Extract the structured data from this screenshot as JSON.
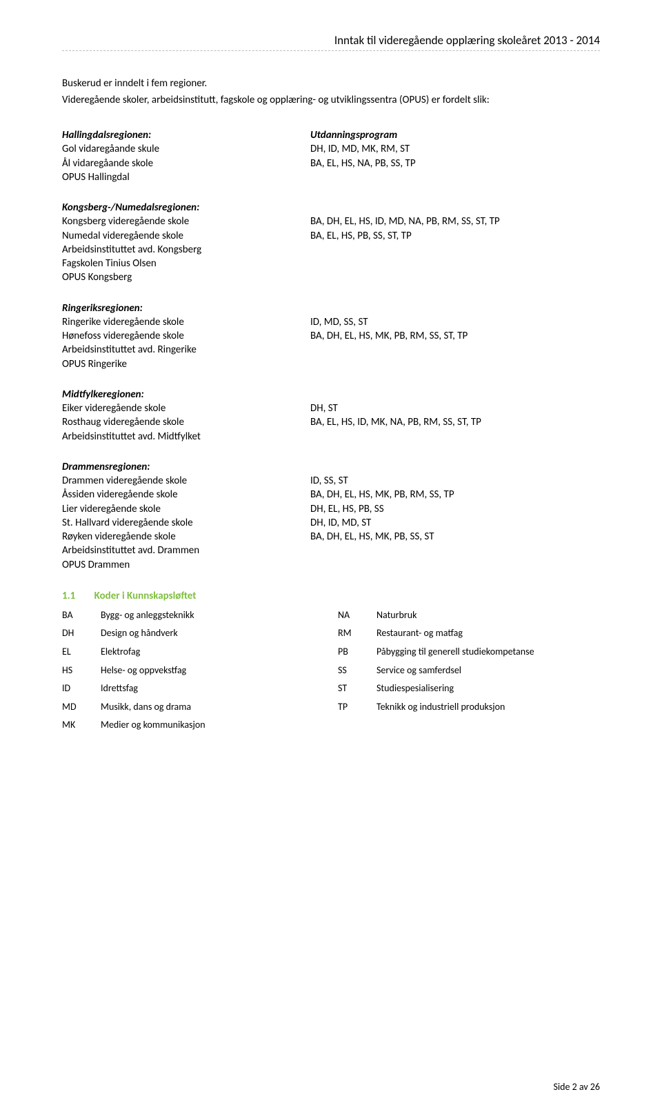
{
  "header": "Inntak til videregående opplæring skoleåret 2013 - 2014",
  "intro_line1": "Buskerud er inndelt i fem regioner.",
  "intro_line2": "Videregående skoler, arbeidsinstitutt, fagskole og opplæring- og utviklingssentra (OPUS) er fordelt slik:",
  "col_heading_right": "Utdanningsprogram",
  "regions": [
    {
      "name": "Hallingdalsregionen:",
      "items": [
        {
          "label": "Gol vidaregåande skule",
          "codes": "DH, ID, MD, MK, RM, ST"
        },
        {
          "label": "Ål vidaregåande skole",
          "codes": "BA, EL, HS, NA, PB, SS, TP"
        },
        {
          "label": "OPUS Hallingdal",
          "codes": ""
        }
      ]
    },
    {
      "name": "Kongsberg-/Numedalsregionen:",
      "items": [
        {
          "label": "Kongsberg videregående skole",
          "codes": "BA, DH, EL, HS, ID, MD, NA, PB, RM, SS, ST, TP"
        },
        {
          "label": "Numedal videregående skole",
          "codes": "BA, EL, HS, PB, SS, ST, TP"
        },
        {
          "label": "Arbeidsinstituttet avd. Kongsberg",
          "codes": ""
        },
        {
          "label": "Fagskolen Tinius Olsen",
          "codes": ""
        },
        {
          "label": "OPUS Kongsberg",
          "codes": ""
        }
      ]
    },
    {
      "name": "Ringeriksregionen:",
      "items": [
        {
          "label": "Ringerike videregående skole",
          "codes": "ID, MD, SS, ST"
        },
        {
          "label": "Hønefoss videregående skole",
          "codes": "BA, DH, EL, HS, MK, PB, RM, SS, ST, TP"
        },
        {
          "label": "Arbeidsinstituttet avd. Ringerike",
          "codes": ""
        },
        {
          "label": "OPUS Ringerike",
          "codes": ""
        }
      ]
    },
    {
      "name": "Midtfylkeregionen:",
      "items": [
        {
          "label": "Eiker videregående skole",
          "codes": "DH, ST"
        },
        {
          "label": "Rosthaug videregående skole",
          "codes": "BA, EL, HS, ID, MK, NA, PB, RM, SS, ST, TP"
        },
        {
          "label": "Arbeidsinstituttet avd. Midtfylket",
          "codes": ""
        }
      ]
    },
    {
      "name": "Drammensregionen:",
      "items": [
        {
          "label": "Drammen videregående skole",
          "codes": "ID, SS, ST"
        },
        {
          "label": "Åssiden videregående skole",
          "codes": "BA, DH, EL, HS, MK, PB, RM, SS, TP"
        },
        {
          "label": "Lier videregående skole",
          "codes": "DH, EL, HS, PB, SS"
        },
        {
          "label": "St. Hallvard videregående skole",
          "codes": "DH, ID, MD, ST"
        },
        {
          "label": "Røyken videregående skole",
          "codes": "BA, DH, EL, HS, MK, PB, SS, ST"
        },
        {
          "label": "Arbeidsinstituttet avd. Drammen",
          "codes": ""
        },
        {
          "label": "OPUS Drammen",
          "codes": ""
        }
      ]
    }
  ],
  "codes_section": {
    "num": "1.1",
    "title": "Koder i Kunnskapsløftet",
    "left": [
      {
        "abbr": "BA",
        "text": "Bygg- og anleggsteknikk"
      },
      {
        "abbr": "DH",
        "text": "Design og håndverk"
      },
      {
        "abbr": "EL",
        "text": "Elektrofag"
      },
      {
        "abbr": "HS",
        "text": "Helse- og oppvekstfag"
      },
      {
        "abbr": "ID",
        "text": "Idrettsfag"
      },
      {
        "abbr": "MD",
        "text": "Musikk, dans og drama"
      },
      {
        "abbr": "MK",
        "text": "Medier og kommunikasjon"
      }
    ],
    "right": [
      {
        "abbr": "NA",
        "text": "Naturbruk"
      },
      {
        "abbr": "RM",
        "text": "Restaurant- og matfag"
      },
      {
        "abbr": "PB",
        "text": "Påbygging til generell studiekompetanse"
      },
      {
        "abbr": "SS",
        "text": "Service og samferdsel"
      },
      {
        "abbr": "ST",
        "text": "Studiespesialisering"
      },
      {
        "abbr": "TP",
        "text": "Teknikk og industriell produksjon"
      }
    ]
  },
  "footer": "Side 2 av 26",
  "colors": {
    "accent_green": "#7fbf3f",
    "text": "#000000",
    "bg": "#ffffff",
    "divider": "#bbbbbb"
  }
}
